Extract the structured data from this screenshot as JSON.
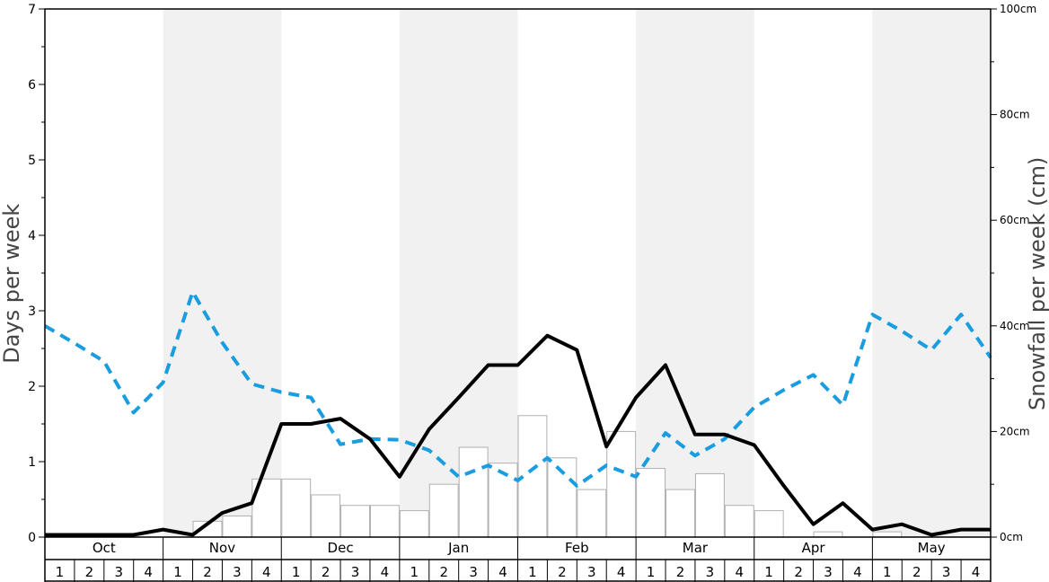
{
  "chart_data": {
    "type": "bar+line",
    "ylabel_left": "Days per week",
    "ylabel_right": "Snowfall per week (cm)",
    "y_left_range": [
      0,
      7
    ],
    "y_left_ticks": [
      "0",
      "1",
      "2",
      "3",
      "4",
      "5",
      "6",
      "7"
    ],
    "y_right_range": [
      0,
      100
    ],
    "y_right_ticks": [
      "0cm",
      "20cm",
      "40cm",
      "60cm",
      "80cm",
      "100cm"
    ],
    "months": [
      "Oct",
      "Nov",
      "Dec",
      "Jan",
      "Feb",
      "Mar",
      "Apr",
      "May"
    ],
    "weeks": [
      "1",
      "2",
      "3",
      "4"
    ],
    "shaded_months": [
      "Nov",
      "Jan",
      "Mar",
      "May"
    ],
    "colors": {
      "shade": "#f1f1f1",
      "bar_fill": "#ffffff",
      "bar_stroke": "#b0b0b0",
      "solid_line": "#000000",
      "dashed_line": "#1a9de0"
    },
    "snowfall_bars_cm": [
      0,
      0,
      0,
      0,
      0,
      3,
      4,
      11,
      11,
      8,
      6,
      6,
      5,
      10,
      17,
      14,
      23,
      15,
      9,
      20,
      13,
      9,
      12,
      6,
      5,
      0,
      1,
      0,
      1,
      0,
      0,
      0
    ],
    "series": [
      {
        "style": "solid",
        "axis": "left",
        "values": [
          0.03,
          0.03,
          0.03,
          0.03,
          0.1,
          0.03,
          0.32,
          0.45,
          1.5,
          1.5,
          1.57,
          1.3,
          0.8,
          1.43,
          1.85,
          2.28,
          2.28,
          2.67,
          2.48,
          1.2,
          1.85,
          2.28,
          1.36,
          1.36,
          1.22,
          0.68,
          0.17,
          0.45,
          0.1,
          0.17,
          0.03,
          0.1,
          0.1
        ]
      },
      {
        "style": "dashed",
        "axis": "left",
        "values": [
          2.8,
          2.57,
          2.33,
          1.65,
          2.05,
          3.25,
          2.58,
          2.03,
          1.92,
          1.85,
          1.23,
          1.3,
          1.29,
          1.15,
          0.8,
          0.95,
          0.75,
          1.05,
          0.68,
          0.95,
          0.8,
          1.38,
          1.08,
          1.3,
          1.72,
          1.95,
          2.15,
          1.75,
          2.95,
          2.73,
          2.48,
          2.95,
          2.38
        ]
      }
    ]
  }
}
